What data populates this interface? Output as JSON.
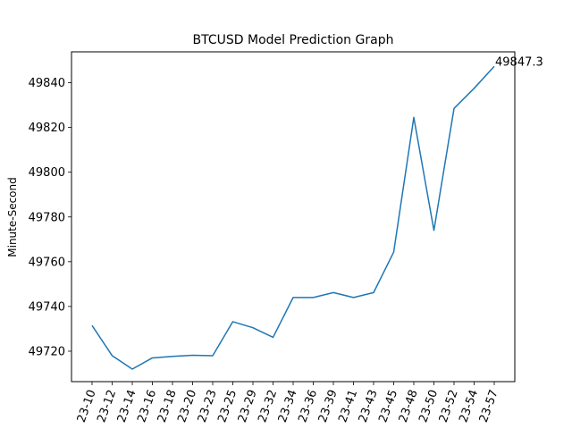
{
  "chart_data": {
    "type": "line",
    "title": "BTCUSD Model Prediction Graph",
    "xlabel": "",
    "ylabel": "Minute-Second",
    "categories": [
      "23-10",
      "23-12",
      "23-14",
      "23-16",
      "23-18",
      "23-20",
      "23-23",
      "23-25",
      "23-29",
      "23-32",
      "23-34",
      "23-36",
      "23-39",
      "23-41",
      "23-43",
      "23-45",
      "23-48",
      "23-50",
      "23-52",
      "23-54",
      "23-57"
    ],
    "series": [
      {
        "values": [
          49731.5,
          49718.0,
          49712.0,
          49717.0,
          49717.7,
          49718.2,
          49718.0,
          49733.2,
          49730.5,
          49726.2,
          49744.0,
          49744.0,
          49746.2,
          49744.0,
          49746.2,
          49764.3,
          49824.5,
          49774.0,
          49828.5,
          49837.5,
          49847.3
        ],
        "color": "#1f77b4"
      }
    ],
    "ylim": [
      49706.4,
      49853.8
    ],
    "yticks": [
      49720,
      49740,
      49760,
      49780,
      49800,
      49820,
      49840
    ],
    "grid": false,
    "legend": "none",
    "annotation": {
      "text": "49847.3",
      "at_index": 20
    }
  }
}
